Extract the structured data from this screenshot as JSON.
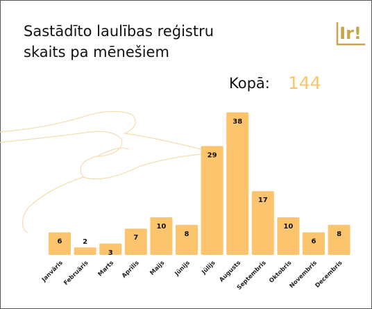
{
  "chart_data": {
    "type": "bar",
    "title": [
      "Sastādīto laulības reģistru",
      "skaits pa mēnešiem"
    ],
    "logo": "Ir!",
    "total_label": "Kopā:",
    "total": 144,
    "categories": [
      "Janvāris",
      "Februāris",
      "Marts",
      "Aprīlis",
      "Maijs",
      "Jūnijs",
      "Jūlijs",
      "Augusts",
      "Septembris",
      "Oktobris",
      "Novembris",
      "Decembris"
    ],
    "values": [
      6,
      2,
      3,
      7,
      10,
      8,
      29,
      38,
      17,
      10,
      6,
      8
    ],
    "color": "#fcc46c"
  }
}
